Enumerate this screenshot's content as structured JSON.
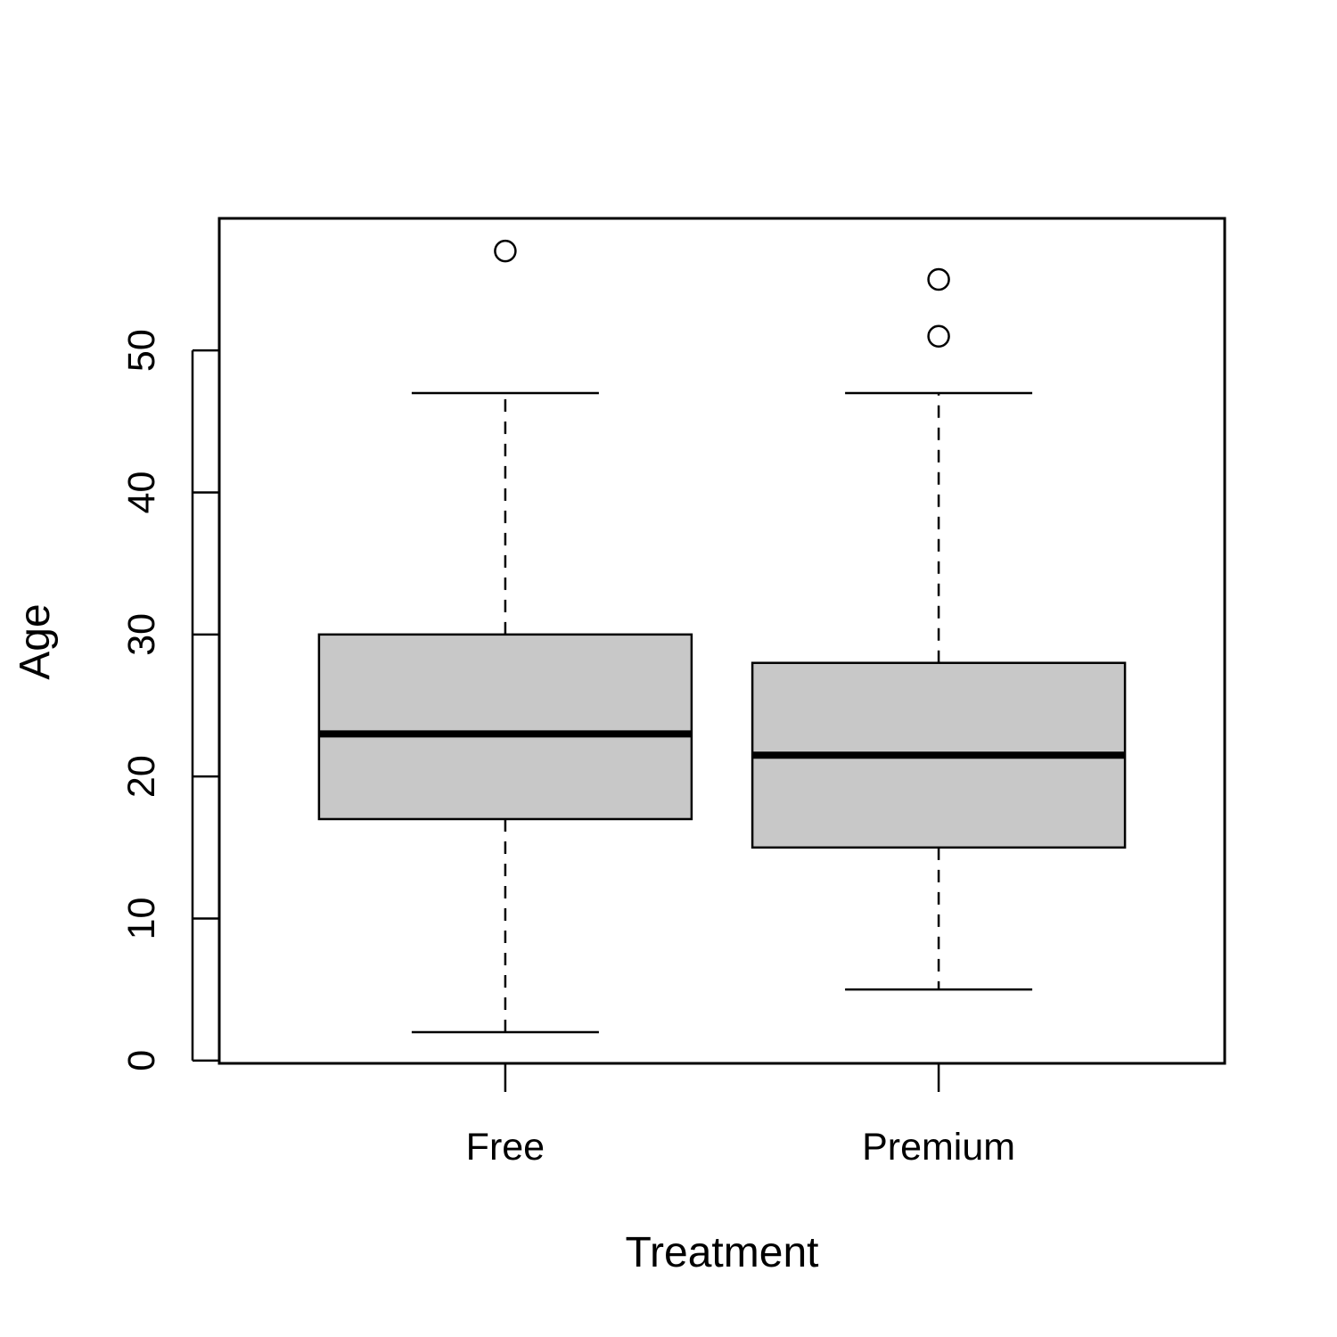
{
  "chart_data": {
    "type": "box",
    "title": "",
    "xlabel": "Treatment",
    "ylabel": "Age",
    "ylim": [
      -0.2,
      59.3
    ],
    "yticks": [
      0,
      10,
      20,
      30,
      40,
      50
    ],
    "ytick_labels": [
      "0",
      "10",
      "20",
      "30",
      "40",
      "50"
    ],
    "grid": false,
    "legend": "none",
    "colors": {
      "box_fill": "#c8c8c8",
      "stroke": "#000000"
    },
    "categories": [
      "Free",
      "Premium"
    ],
    "boxes": [
      {
        "category": "Free",
        "whisker_low": 2,
        "q1": 17,
        "median": 23,
        "q3": 30,
        "whisker_high": 47,
        "outliers": [
          57
        ]
      },
      {
        "category": "Premium",
        "whisker_low": 5,
        "q1": 15,
        "median": 21.5,
        "q3": 28,
        "whisker_high": 47,
        "outliers": [
          51,
          55
        ]
      }
    ]
  }
}
